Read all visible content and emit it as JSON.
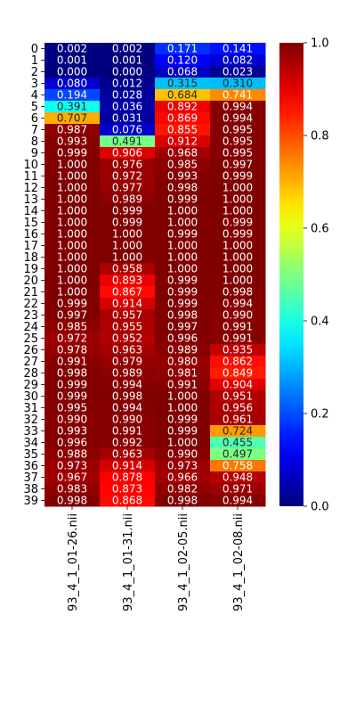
{
  "chart_data": {
    "type": "heatmap",
    "title": "",
    "xlabel": "",
    "ylabel": "",
    "colormap": "jet",
    "vmin": 0.0,
    "vmax": 1.0,
    "colorbar_ticks": [
      "0.0",
      "0.2",
      "0.4",
      "0.6",
      "0.8",
      "1.0"
    ],
    "colorbar_tick_values": [
      0.0,
      0.2,
      0.4,
      0.6,
      0.8,
      1.0
    ],
    "columns": [
      "93_4_1_01-26.nii",
      "93_4_1_01-31.nii",
      "93_4_1_02-05.nii",
      "93_4_1_02-08.nii"
    ],
    "rows": [
      "0",
      "1",
      "2",
      "3",
      "4",
      "5",
      "6",
      "7",
      "8",
      "9",
      "10",
      "11",
      "12",
      "13",
      "14",
      "15",
      "16",
      "17",
      "18",
      "19",
      "20",
      "21",
      "22",
      "23",
      "24",
      "25",
      "26",
      "27",
      "28",
      "29",
      "30",
      "31",
      "32",
      "33",
      "34",
      "35",
      "36",
      "37",
      "38",
      "39"
    ],
    "values": [
      [
        0.002,
        0.002,
        0.171,
        0.141
      ],
      [
        0.001,
        0.001,
        0.12,
        0.082
      ],
      [
        0.0,
        0.0,
        0.068,
        0.023
      ],
      [
        0.08,
        0.012,
        0.315,
        0.31
      ],
      [
        0.194,
        0.028,
        0.684,
        0.741
      ],
      [
        0.391,
        0.036,
        0.892,
        0.994
      ],
      [
        0.707,
        0.031,
        0.869,
        0.994
      ],
      [
        0.987,
        0.076,
        0.855,
        0.995
      ],
      [
        0.993,
        0.491,
        0.912,
        0.995
      ],
      [
        0.999,
        0.906,
        0.968,
        0.995
      ],
      [
        1.0,
        0.976,
        0.985,
        0.997
      ],
      [
        1.0,
        0.972,
        0.993,
        0.999
      ],
      [
        1.0,
        0.977,
        0.998,
        1.0
      ],
      [
        1.0,
        0.989,
        0.999,
        1.0
      ],
      [
        1.0,
        0.999,
        1.0,
        1.0
      ],
      [
        1.0,
        0.999,
        1.0,
        0.999
      ],
      [
        1.0,
        1.0,
        0.999,
        0.999
      ],
      [
        1.0,
        1.0,
        1.0,
        1.0
      ],
      [
        1.0,
        1.0,
        1.0,
        1.0
      ],
      [
        1.0,
        0.958,
        1.0,
        1.0
      ],
      [
        1.0,
        0.893,
        0.999,
        1.0
      ],
      [
        1.0,
        0.867,
        0.999,
        0.998
      ],
      [
        0.999,
        0.914,
        0.999,
        0.994
      ],
      [
        0.997,
        0.957,
        0.998,
        0.99
      ],
      [
        0.985,
        0.955,
        0.997,
        0.991
      ],
      [
        0.972,
        0.952,
        0.996,
        0.991
      ],
      [
        0.978,
        0.963,
        0.989,
        0.935
      ],
      [
        0.991,
        0.979,
        0.98,
        0.862
      ],
      [
        0.998,
        0.989,
        0.981,
        0.849
      ],
      [
        0.999,
        0.994,
        0.991,
        0.904
      ],
      [
        0.999,
        0.998,
        1.0,
        0.951
      ],
      [
        0.995,
        0.994,
        1.0,
        0.956
      ],
      [
        0.99,
        0.99,
        0.999,
        0.961
      ],
      [
        0.993,
        0.991,
        0.999,
        0.724
      ],
      [
        0.996,
        0.992,
        1.0,
        0.455
      ],
      [
        0.988,
        0.963,
        0.99,
        0.497
      ],
      [
        0.973,
        0.914,
        0.973,
        0.758
      ],
      [
        0.967,
        0.878,
        0.966,
        0.948
      ],
      [
        0.983,
        0.873,
        0.982,
        0.971
      ],
      [
        0.998,
        0.868,
        0.998,
        0.994
      ]
    ]
  }
}
